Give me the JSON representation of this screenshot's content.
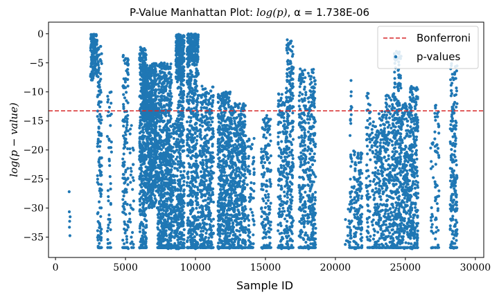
{
  "chart_data": {
    "type": "scatter",
    "title": "P-Value Manhattan Plot: log(p), α = 1.738E-06",
    "xlabel": "Sample ID",
    "ylabel": "log(p − value)",
    "xlim": [
      -500,
      30600
    ],
    "ylim": [
      -38.5,
      2
    ],
    "x_ticks": [
      0,
      5000,
      10000,
      15000,
      20000,
      25000,
      30000
    ],
    "x_tick_labels": [
      "0",
      "5000",
      "10000",
      "15000",
      "20000",
      "25000",
      "30000"
    ],
    "y_ticks": [
      0,
      -5,
      -10,
      -15,
      -20,
      -25,
      -30,
      -35
    ],
    "y_tick_labels": [
      "0",
      "−5",
      "−10",
      "−15",
      "−20",
      "−25",
      "−30",
      "−35"
    ],
    "grid": false,
    "legend": {
      "position": "top-right",
      "entries": [
        "Bonferroni",
        "p-values"
      ]
    },
    "threshold": {
      "name": "Bonferroni",
      "value": -13.26,
      "color": "#d62728",
      "style": "dashed"
    },
    "series": [
      {
        "name": "p-values",
        "color": "#1f77b4",
        "clusters": [
          {
            "x": [
              950,
              1050
            ],
            "y": [
              -36,
              -27
            ],
            "density": 0.3
          },
          {
            "x": [
              2500,
              3000
            ],
            "y": [
              -8,
              0
            ],
            "density": 4
          },
          {
            "x": [
              3000,
              3300
            ],
            "y": [
              -37,
              -2
            ],
            "density": 1.5
          },
          {
            "x": [
              3700,
              4000
            ],
            "y": [
              -37,
              -10
            ],
            "density": 0.6
          },
          {
            "x": [
              4800,
              5200
            ],
            "y": [
              -37,
              -3
            ],
            "density": 1.2
          },
          {
            "x": [
              5300,
              5600
            ],
            "y": [
              -37,
              -15
            ],
            "density": 0.5
          },
          {
            "x": [
              6000,
              6500
            ],
            "y": [
              -37,
              -2
            ],
            "density": 2.5
          },
          {
            "x": [
              6200,
              7200
            ],
            "y": [
              -15,
              -5
            ],
            "density": 5
          },
          {
            "x": [
              6500,
              7300
            ],
            "y": [
              -30,
              -12
            ],
            "density": 3
          },
          {
            "x": [
              7300,
              8300
            ],
            "y": [
              -37,
              -5
            ],
            "density": 3
          },
          {
            "x": [
              8300,
              8700
            ],
            "y": [
              -37,
              -15
            ],
            "density": 1.5
          },
          {
            "x": [
              8600,
              9200
            ],
            "y": [
              -8,
              0
            ],
            "density": 5
          },
          {
            "x": [
              8700,
              9200
            ],
            "y": [
              -37,
              -8
            ],
            "density": 2.5
          },
          {
            "x": [
              9400,
              10200
            ],
            "y": [
              -5,
              0
            ],
            "density": 5
          },
          {
            "x": [
              9400,
              10200
            ],
            "y": [
              -37,
              -5
            ],
            "density": 2
          },
          {
            "x": [
              10300,
              11300
            ],
            "y": [
              -37,
              -9
            ],
            "density": 1.8
          },
          {
            "x": [
              11600,
              12500
            ],
            "y": [
              -37,
              -10
            ],
            "density": 2.5
          },
          {
            "x": [
              12500,
              13600
            ],
            "y": [
              -37,
              -12
            ],
            "density": 2.2
          },
          {
            "x": [
              13700,
              14200
            ],
            "y": [
              -37,
              -18
            ],
            "density": 0.9
          },
          {
            "x": [
              14700,
              15400
            ],
            "y": [
              -37,
              -14
            ],
            "density": 1.2
          },
          {
            "x": [
              15900,
              16600
            ],
            "y": [
              -37,
              -10
            ],
            "density": 1.2
          },
          {
            "x": [
              16500,
              17000
            ],
            "y": [
              -37,
              -1
            ],
            "density": 1.5
          },
          {
            "x": [
              17400,
              17900
            ],
            "y": [
              -37,
              -6
            ],
            "density": 1.5
          },
          {
            "x": [
              18000,
              18600
            ],
            "y": [
              -37,
              -6
            ],
            "density": 1.5
          },
          {
            "x": [
              20700,
              21100
            ],
            "y": [
              -37,
              -30
            ],
            "density": 0.3
          },
          {
            "x": [
              21000,
              21200
            ],
            "y": [
              -37,
              -6
            ],
            "density": 0.8
          },
          {
            "x": [
              21300,
              21900
            ],
            "y": [
              -37,
              -20
            ],
            "density": 1.5
          },
          {
            "x": [
              22200,
              22500
            ],
            "y": [
              -37,
              -10
            ],
            "density": 0.9
          },
          {
            "x": [
              22600,
              23100
            ],
            "y": [
              -37,
              -15
            ],
            "density": 1.2
          },
          {
            "x": [
              23100,
              23600
            ],
            "y": [
              -37,
              -13
            ],
            "density": 1.5
          },
          {
            "x": [
              23600,
              24200
            ],
            "y": [
              -37,
              -10
            ],
            "density": 1.4
          },
          {
            "x": [
              24200,
              24700
            ],
            "y": [
              -37,
              -3
            ],
            "density": 1.8
          },
          {
            "x": [
              24700,
              25300
            ],
            "y": [
              -37,
              -12
            ],
            "density": 1.5
          },
          {
            "x": [
              25300,
              25900
            ],
            "y": [
              -37,
              -9
            ],
            "density": 2
          },
          {
            "x": [
              26800,
              27000
            ],
            "y": [
              -37,
              -18
            ],
            "density": 0.6
          },
          {
            "x": [
              27100,
              27400
            ],
            "y": [
              -37,
              -12
            ],
            "density": 0.8
          },
          {
            "x": [
              28200,
              28700
            ],
            "y": [
              -37,
              -5
            ],
            "density": 1.5
          }
        ]
      }
    ]
  }
}
